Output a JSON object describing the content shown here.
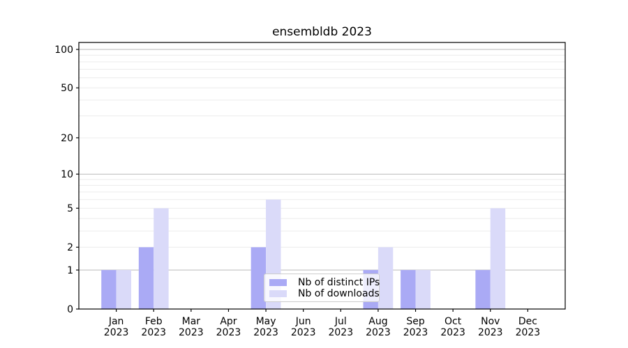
{
  "chart_data": {
    "type": "bar",
    "title": "ensembldb 2023",
    "categories": [
      "Jan",
      "Feb",
      "Mar",
      "Apr",
      "May",
      "Jun",
      "Jul",
      "Aug",
      "Sep",
      "Oct",
      "Nov",
      "Dec"
    ],
    "x_year_label": "2023",
    "series": [
      {
        "name": "Nb of distinct IPs",
        "color": "#aaaaf5",
        "values": [
          1,
          2,
          0,
          0,
          2,
          0,
          0,
          1,
          1,
          0,
          1,
          0
        ]
      },
      {
        "name": "Nb of downloads",
        "color": "#dadaf9",
        "values": [
          1,
          5,
          0,
          0,
          6,
          0,
          0,
          2,
          1,
          0,
          5,
          0
        ]
      }
    ],
    "y_scale": "log1p",
    "y_ticks": [
      0,
      1,
      2,
      5,
      10,
      20,
      50,
      100
    ],
    "y_major_gridlines": [
      1,
      10,
      100
    ],
    "y_minor_gridlines": [
      2,
      3,
      4,
      5,
      6,
      7,
      8,
      9,
      20,
      30,
      40,
      50,
      60,
      70,
      80,
      90
    ],
    "ylim": [
      0,
      113
    ],
    "grid": true,
    "legend": {
      "position": "lower center"
    },
    "colors": {
      "axis": "#000000",
      "major_grid": "#b9b9b9",
      "minor_grid": "#ececec",
      "background": "#ffffff",
      "text": "#000000"
    }
  }
}
